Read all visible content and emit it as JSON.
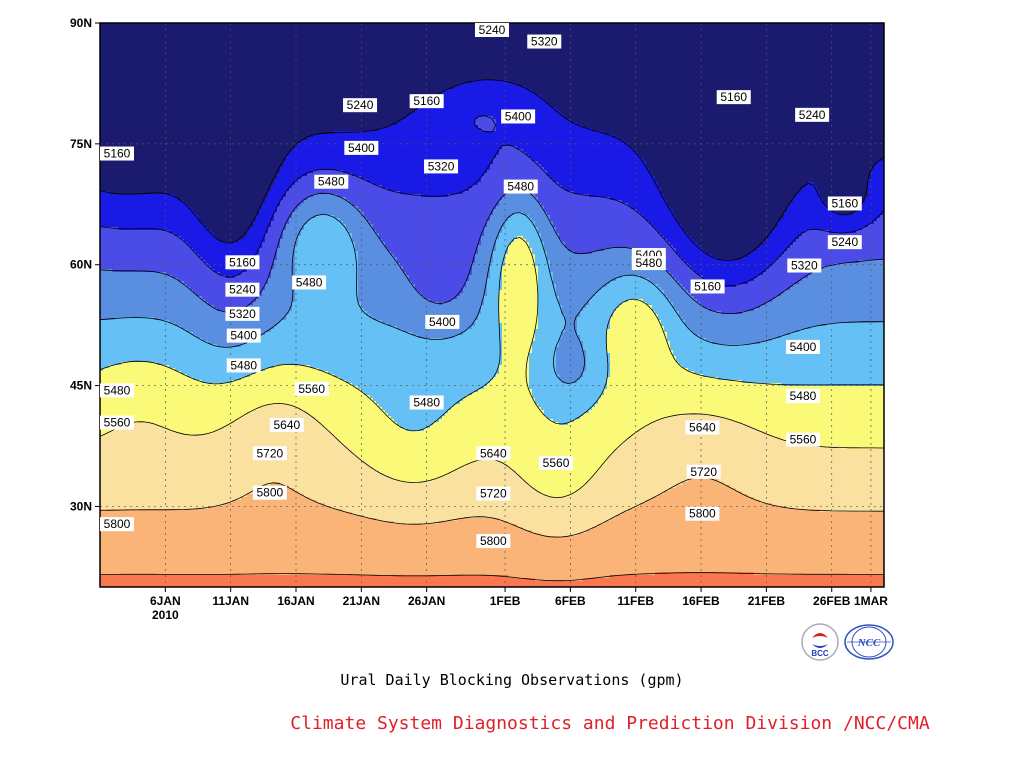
{
  "chart_data": {
    "type": "contour",
    "caption": "Ural Daily Blocking Observations (gpm)",
    "credit": "Climate System Diagnostics and Prediction Division /NCC/CMA",
    "x_ticks": [
      {
        "label": "6JAN",
        "sub": "2010",
        "day": 6
      },
      {
        "label": "11JAN",
        "day": 11
      },
      {
        "label": "16JAN",
        "day": 16
      },
      {
        "label": "21JAN",
        "day": 21
      },
      {
        "label": "26JAN",
        "day": 26
      },
      {
        "label": "1FEB",
        "day": 32
      },
      {
        "label": "6FEB",
        "day": 37
      },
      {
        "label": "11FEB",
        "day": 42
      },
      {
        "label": "16FEB",
        "day": 47
      },
      {
        "label": "21FEB",
        "day": 52
      },
      {
        "label": "26FEB",
        "day": 57
      },
      {
        "label": "1MAR",
        "day": 60
      }
    ],
    "y_ticks": [
      {
        "label": "30N",
        "lat": 30
      },
      {
        "label": "45N",
        "lat": 45
      },
      {
        "label": "60N",
        "lat": 60
      },
      {
        "label": "75N",
        "lat": 75
      },
      {
        "label": "90N",
        "lat": 90
      }
    ],
    "xlim": [
      1,
      61
    ],
    "ylim": [
      20,
      90
    ],
    "grid": true,
    "contour_levels": [
      5160,
      5240,
      5320,
      5400,
      5480,
      5560,
      5640,
      5720,
      5800
    ],
    "fill_colors": [
      "#1a1a6e",
      "#1a1ae6",
      "#4b4be8",
      "#5a8ee0",
      "#64c0f5",
      "#fafa78",
      "#fae1a0",
      "#fab478",
      "#fa7850",
      "#f5697a"
    ],
    "contour_labels": [
      {
        "text": "5240",
        "day": 31,
        "lat": 89.5
      },
      {
        "text": "5320",
        "day": 35,
        "lat": 87.7
      },
      {
        "text": "5160",
        "day": 1,
        "lat": 73.8
      },
      {
        "text": "5240",
        "day": 20.9,
        "lat": 79.8
      },
      {
        "text": "5160",
        "day": 26,
        "lat": 80.3
      },
      {
        "text": "5400",
        "day": 21,
        "lat": 74.5
      },
      {
        "text": "5320",
        "day": 27.1,
        "lat": 72.2
      },
      {
        "text": "5400",
        "day": 33,
        "lat": 78.4
      },
      {
        "text": "5480",
        "day": 18.7,
        "lat": 70.3
      },
      {
        "text": "5480",
        "day": 33.2,
        "lat": 69.7
      },
      {
        "text": "5160",
        "day": 49.5,
        "lat": 80.8
      },
      {
        "text": "5240",
        "day": 55.5,
        "lat": 78.6
      },
      {
        "text": "5160",
        "day": 58,
        "lat": 67.6
      },
      {
        "text": "5240",
        "day": 58,
        "lat": 62.8
      },
      {
        "text": "5320",
        "day": 54.9,
        "lat": 59.9
      },
      {
        "text": "5160",
        "day": 11.9,
        "lat": 60.3
      },
      {
        "text": "5240",
        "day": 11.9,
        "lat": 56.9
      },
      {
        "text": "5320",
        "day": 11.9,
        "lat": 53.9
      },
      {
        "text": "5400",
        "day": 12,
        "lat": 51.2
      },
      {
        "text": "5480",
        "day": 12,
        "lat": 47.5
      },
      {
        "text": "5480",
        "day": 17,
        "lat": 57.8
      },
      {
        "text": "5400",
        "day": 43,
        "lat": 61.2
      },
      {
        "text": "5480",
        "day": 43,
        "lat": 60.2
      },
      {
        "text": "5400",
        "day": 27.2,
        "lat": 52.9
      },
      {
        "text": "5160",
        "day": 47.5,
        "lat": 57.3
      },
      {
        "text": "5400",
        "day": 54.8,
        "lat": 49.8
      },
      {
        "text": "5480",
        "day": 1,
        "lat": 44.4
      },
      {
        "text": "5560",
        "day": 17.2,
        "lat": 44.6
      },
      {
        "text": "5480",
        "day": 26,
        "lat": 42.9
      },
      {
        "text": "5480",
        "day": 54.8,
        "lat": 43.7
      },
      {
        "text": "5560",
        "day": 1,
        "lat": 40.4
      },
      {
        "text": "5640",
        "day": 15.3,
        "lat": 40.1
      },
      {
        "text": "5640",
        "day": 31.1,
        "lat": 36.6
      },
      {
        "text": "5560",
        "day": 35.9,
        "lat": 35.4
      },
      {
        "text": "5640",
        "day": 47.1,
        "lat": 39.8
      },
      {
        "text": "5560",
        "day": 54.8,
        "lat": 38.3
      },
      {
        "text": "5720",
        "day": 14,
        "lat": 36.6
      },
      {
        "text": "5720",
        "day": 31.1,
        "lat": 31.6
      },
      {
        "text": "5720",
        "day": 47.2,
        "lat": 34.3
      },
      {
        "text": "5800",
        "day": 14,
        "lat": 31.7
      },
      {
        "text": "5800",
        "day": 2.2,
        "lat": 27.8
      },
      {
        "text": "5800",
        "day": 31.1,
        "lat": 25.7
      },
      {
        "text": "5800",
        "day": 47.1,
        "lat": 29.1
      }
    ]
  },
  "logos": {
    "left": {
      "text": "BCC",
      "icon": "bcc-logo-icon"
    },
    "right": {
      "text": "NCC",
      "icon": "ncc-logo-icon"
    }
  }
}
